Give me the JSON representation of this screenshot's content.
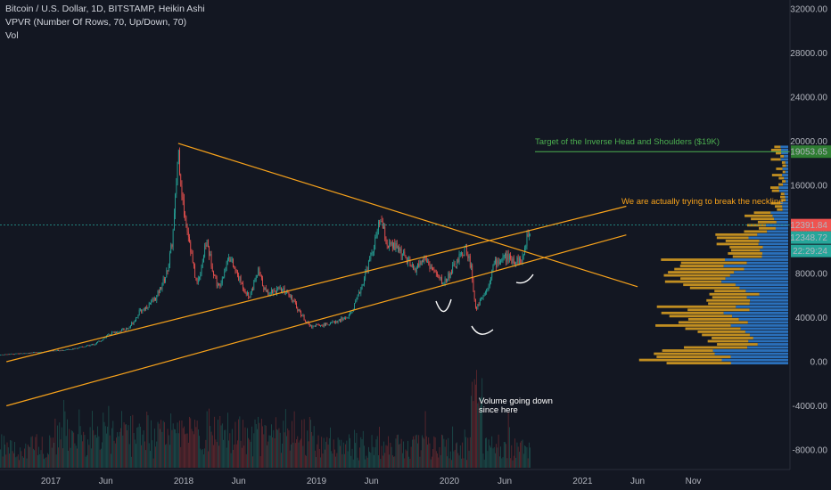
{
  "legend": {
    "line1": "Bitcoin / U.S. Dollar, 1D, BITSTAMP, Heikin Ashi",
    "line2": "VPVR (Number Of Rows, 70, Up/Down, 70)",
    "line3": "Vol"
  },
  "annotations": {
    "target": "Target of the Inverse Head and Shoulders ($19K)",
    "neckline": "We are actually trying to break the neckline",
    "volume_line1": "Volume going down",
    "volume_line2": "since here"
  },
  "price_tags": [
    {
      "label": "19053.65",
      "color": "#2e7d32"
    },
    {
      "label": "12391.84",
      "color": "#ef5350"
    },
    {
      "label": "12348.72",
      "color": "#26a69a"
    },
    {
      "label": "22:29:24",
      "color": "#26a69a"
    }
  ],
  "colors": {
    "background": "#131722",
    "up": "#26a69a",
    "down": "#ef5350",
    "trendline": "#f7a21b",
    "target_line": "#4caf50",
    "vp_up": "#2f80d6",
    "vp_down": "#e0a321"
  },
  "chart_data": {
    "type": "candlestick",
    "y_axis": {
      "ticks": [
        "32000.00",
        "28000.00",
        "24000.00",
        "20000.00",
        "16000.00",
        "12000.00",
        "8000.00",
        "4000.00",
        "0.00",
        "-4000.00",
        "-8000.00"
      ],
      "range": [
        -9000,
        32700
      ]
    },
    "x_axis": {
      "ticks": [
        "2017",
        "Jun",
        "2018",
        "Jun",
        "2019",
        "Jun",
        "2020",
        "Jun",
        "2021",
        "Jun",
        "Nov"
      ],
      "range": [
        "2016-08-01",
        "2021-12-31"
      ]
    },
    "price_path": [
      [
        "2016-08-01",
        600
      ],
      [
        "2016-12-31",
        960
      ],
      [
        "2017-03-01",
        1150
      ],
      [
        "2017-05-01",
        1600
      ],
      [
        "2017-06-15",
        2600
      ],
      [
        "2017-08-01",
        3000
      ],
      [
        "2017-09-01",
        4500
      ],
      [
        "2017-10-15",
        5700
      ],
      [
        "2017-11-15",
        8000
      ],
      [
        "2017-12-01",
        11000
      ],
      [
        "2017-12-17",
        19500
      ],
      [
        "2017-12-31",
        14000
      ],
      [
        "2018-01-15",
        11500
      ],
      [
        "2018-02-06",
        7000
      ],
      [
        "2018-03-05",
        11000
      ],
      [
        "2018-04-06",
        6700
      ],
      [
        "2018-05-05",
        9700
      ],
      [
        "2018-06-29",
        5900
      ],
      [
        "2018-07-25",
        8200
      ],
      [
        "2018-08-15",
        6300
      ],
      [
        "2018-09-15",
        6500
      ],
      [
        "2018-10-15",
        6400
      ],
      [
        "2018-11-20",
        4300
      ],
      [
        "2018-12-15",
        3200
      ],
      [
        "2019-02-01",
        3400
      ],
      [
        "2019-04-01",
        4100
      ],
      [
        "2019-05-15",
        8000
      ],
      [
        "2019-06-26",
        13000
      ],
      [
        "2019-07-15",
        10500
      ],
      [
        "2019-08-15",
        10300
      ],
      [
        "2019-09-25",
        8300
      ],
      [
        "2019-10-26",
        9400
      ],
      [
        "2019-12-15",
        7100
      ],
      [
        "2020-01-15",
        8700
      ],
      [
        "2020-02-14",
        10300
      ],
      [
        "2020-03-01",
        8700
      ],
      [
        "2020-03-13",
        4800
      ],
      [
        "2020-04-15",
        6800
      ],
      [
        "2020-05-01",
        8800
      ],
      [
        "2020-06-01",
        9500
      ],
      [
        "2020-07-01",
        9200
      ],
      [
        "2020-07-20",
        9200
      ],
      [
        "2020-08-01",
        11500
      ],
      [
        "2020-08-10",
        12100
      ]
    ],
    "volume_profile_note": "horizontal volume-by-price histogram on the right, up/down split, highest near 0 to 1000 and 8000 to 9000",
    "trendlines": [
      {
        "name": "descending",
        "from": [
          "2017-12-17",
          19800
        ],
        "to": [
          "2021-06-01",
          6800
        ]
      },
      {
        "name": "neckline",
        "from": [
          "2016-09-01",
          0
        ],
        "to": [
          "2021-05-01",
          14100
        ]
      },
      {
        "name": "lower-channel",
        "from": [
          "2016-09-01",
          -4000
        ],
        "to": [
          "2021-05-01",
          11500
        ]
      }
    ],
    "target_price": 19053.65,
    "last_price": 12391.84
  }
}
